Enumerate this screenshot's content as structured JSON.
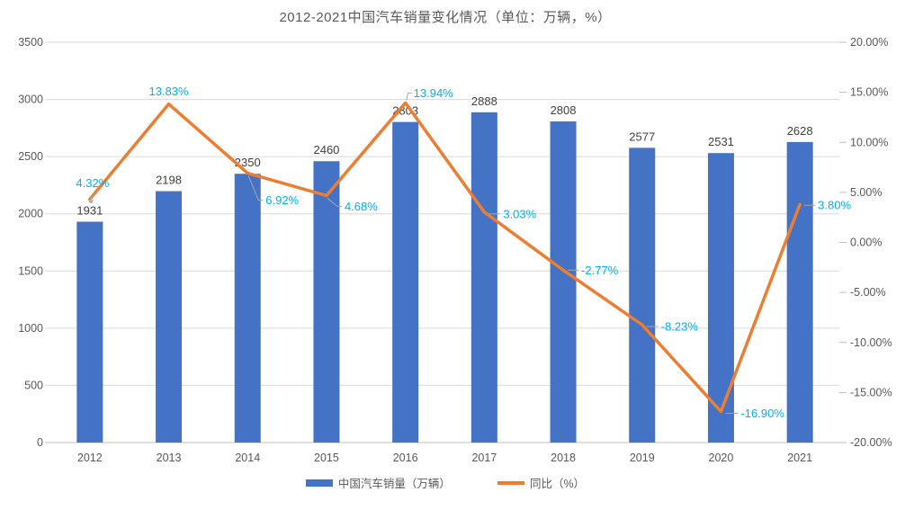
{
  "page": {
    "background": "#ffffff"
  },
  "chart_data": {
    "type": "combo-bar-line",
    "title": "2012-2021中国汽车销量变化情况（单位：万辆，%）",
    "categories": [
      "2012",
      "2013",
      "2014",
      "2015",
      "2016",
      "2017",
      "2018",
      "2019",
      "2020",
      "2021"
    ],
    "series": [
      {
        "name": "中国汽车销量（万辆）",
        "type": "bar",
        "axis": "left",
        "color": "#4472C4",
        "values": [
          1931,
          2198,
          2350,
          2460,
          2803,
          2888,
          2808,
          2577,
          2531,
          2628
        ],
        "labels": [
          "1931",
          "2198",
          "2350",
          "2460",
          "2803",
          "2888",
          "2808",
          "2577",
          "2531",
          "2628"
        ]
      },
      {
        "name": "同比（%）",
        "type": "line",
        "axis": "right",
        "color": "#ED7D31",
        "values": [
          4.32,
          13.83,
          6.92,
          4.68,
          13.94,
          3.03,
          -2.77,
          -8.23,
          -16.9,
          3.8
        ],
        "labels": [
          "4.32%",
          "13.83%",
          "6.92%",
          "4.68%",
          "13.94%",
          "3.03%",
          "-2.77%",
          "-8.23%",
          "-16.90%",
          "3.80%"
        ]
      }
    ],
    "left_axis": {
      "min": 0,
      "max": 3500,
      "step": 500,
      "tick_labels": [
        "3500",
        "3000",
        "2500",
        "2000",
        "1500",
        "1000",
        "500",
        "0"
      ],
      "tick_values": [
        3500,
        3000,
        2500,
        2000,
        1500,
        1000,
        500,
        0
      ]
    },
    "right_axis": {
      "min": -20,
      "max": 20,
      "step": 5,
      "tick_labels": [
        "20.00%",
        "15.00%",
        "10.00%",
        "5.00%",
        "0.00%",
        "-5.00%",
        "-10.00%",
        "-15.00%",
        "-20.00%"
      ],
      "tick_values": [
        20,
        15,
        10,
        5,
        0,
        -5,
        -10,
        -15,
        -20
      ]
    },
    "grid": true,
    "legend_position": "bottom"
  },
  "colors": {
    "bar": "#4472C4",
    "line": "#ED7D31",
    "percent_label": "#00B0F0",
    "value_label": "#404040",
    "tick_label": "#595959",
    "gridline": "#D9D9D9",
    "axis_line": "#BFBFBF",
    "leader_line": "#A6A6A6",
    "title": "#595959"
  }
}
